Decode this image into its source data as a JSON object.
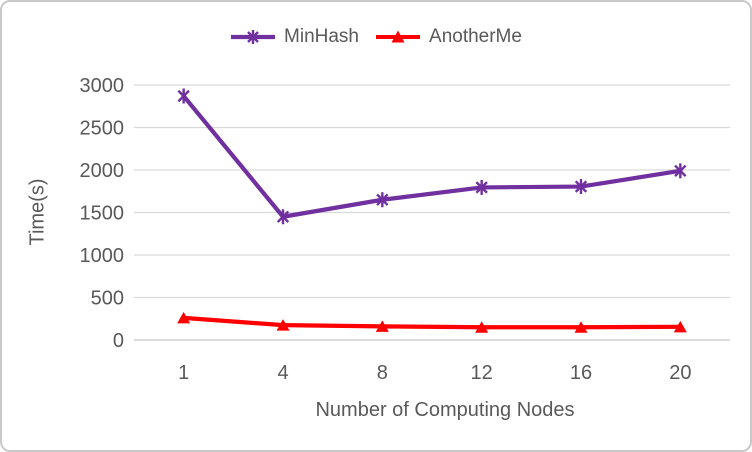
{
  "chart_data": {
    "type": "line",
    "title": "",
    "xlabel": "Number of Computing Nodes",
    "ylabel": "Time(s)",
    "categories": [
      "1",
      "4",
      "8",
      "12",
      "16",
      "20"
    ],
    "y_ticks": [
      "0",
      "500",
      "1000",
      "1500",
      "2000",
      "2500",
      "3000"
    ],
    "ylim": [
      0,
      3000
    ],
    "grid": "horizontal",
    "legend_position": "top-center",
    "series": [
      {
        "name": "MinHash",
        "color": "#7030A0",
        "marker": "asterisk",
        "values": [
          2870,
          1450,
          1650,
          1795,
          1805,
          1990
        ]
      },
      {
        "name": "AnotherMe",
        "color": "#FF0000",
        "marker": "triangle",
        "values": [
          260,
          175,
          160,
          150,
          150,
          155
        ]
      }
    ],
    "colors": {
      "text": "#595959",
      "gridline": "#D9D9D9",
      "axis_line": "#D0D0D0",
      "frame_border": "#C9C9C9"
    }
  }
}
